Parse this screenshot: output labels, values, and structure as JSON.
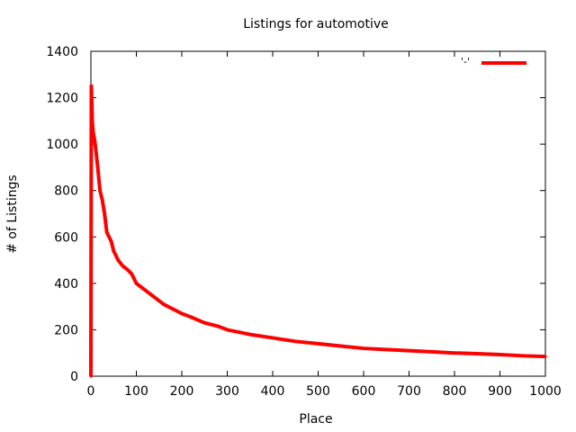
{
  "chart_data": {
    "type": "line",
    "title": "Listings for automotive",
    "xlabel": "Place",
    "ylabel": "# of Listings",
    "xlim": [
      0,
      1000
    ],
    "ylim": [
      0,
      1400
    ],
    "xticks": [
      0,
      100,
      200,
      300,
      400,
      500,
      600,
      700,
      800,
      900,
      1000
    ],
    "yticks": [
      0,
      200,
      400,
      600,
      800,
      1000,
      1200,
      1400
    ],
    "grid": false,
    "legend": {
      "placement": "top-right",
      "label": "'-'",
      "color": "#ff0000"
    },
    "series": [
      {
        "color": "#ff0000",
        "x": [
          0,
          1,
          2,
          3,
          5,
          8,
          10,
          15,
          20,
          25,
          30,
          35,
          40,
          45,
          50,
          60,
          70,
          80,
          90,
          100,
          120,
          140,
          160,
          180,
          200,
          220,
          250,
          280,
          300,
          350,
          400,
          450,
          500,
          550,
          600,
          650,
          700,
          750,
          800,
          850,
          900,
          950,
          1000
        ],
        "y": [
          0,
          1250,
          1180,
          1100,
          1050,
          1020,
          990,
          900,
          800,
          760,
          700,
          620,
          600,
          580,
          540,
          500,
          475,
          460,
          440,
          400,
          370,
          340,
          310,
          290,
          270,
          255,
          230,
          215,
          200,
          180,
          165,
          150,
          140,
          130,
          120,
          115,
          110,
          105,
          100,
          97,
          93,
          88,
          85
        ]
      }
    ]
  }
}
